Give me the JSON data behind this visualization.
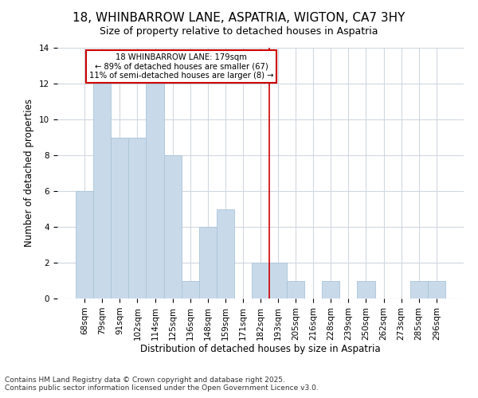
{
  "title": "18, WHINBARROW LANE, ASPATRIA, WIGTON, CA7 3HY",
  "subtitle": "Size of property relative to detached houses in Aspatria",
  "xlabel": "Distribution of detached houses by size in Aspatria",
  "ylabel": "Number of detached properties",
  "bar_color": "#c8daea",
  "bar_edge_color": "#aac4d8",
  "categories": [
    "68sqm",
    "79sqm",
    "91sqm",
    "102sqm",
    "114sqm",
    "125sqm",
    "136sqm",
    "148sqm",
    "159sqm",
    "171sqm",
    "182sqm",
    "193sqm",
    "205sqm",
    "216sqm",
    "228sqm",
    "239sqm",
    "250sqm",
    "262sqm",
    "273sqm",
    "285sqm",
    "296sqm"
  ],
  "values": [
    6,
    12,
    9,
    9,
    12,
    8,
    1,
    4,
    5,
    0,
    2,
    2,
    1,
    0,
    1,
    0,
    1,
    0,
    0,
    1,
    1
  ],
  "vline_x": 10.5,
  "vline_color": "#cc0000",
  "annotation_text": "18 WHINBARROW LANE: 179sqm\n← 89% of detached houses are smaller (67)\n11% of semi-detached houses are larger (8) →",
  "footer": "Contains HM Land Registry data © Crown copyright and database right 2025.\nContains public sector information licensed under the Open Government Licence v3.0.",
  "ylim": [
    0,
    14
  ],
  "background_color": "#ffffff",
  "grid_color": "#d0d8e0",
  "title_fontsize": 11,
  "subtitle_fontsize": 9,
  "axis_label_fontsize": 8.5,
  "tick_fontsize": 7.5,
  "footer_fontsize": 6.5
}
